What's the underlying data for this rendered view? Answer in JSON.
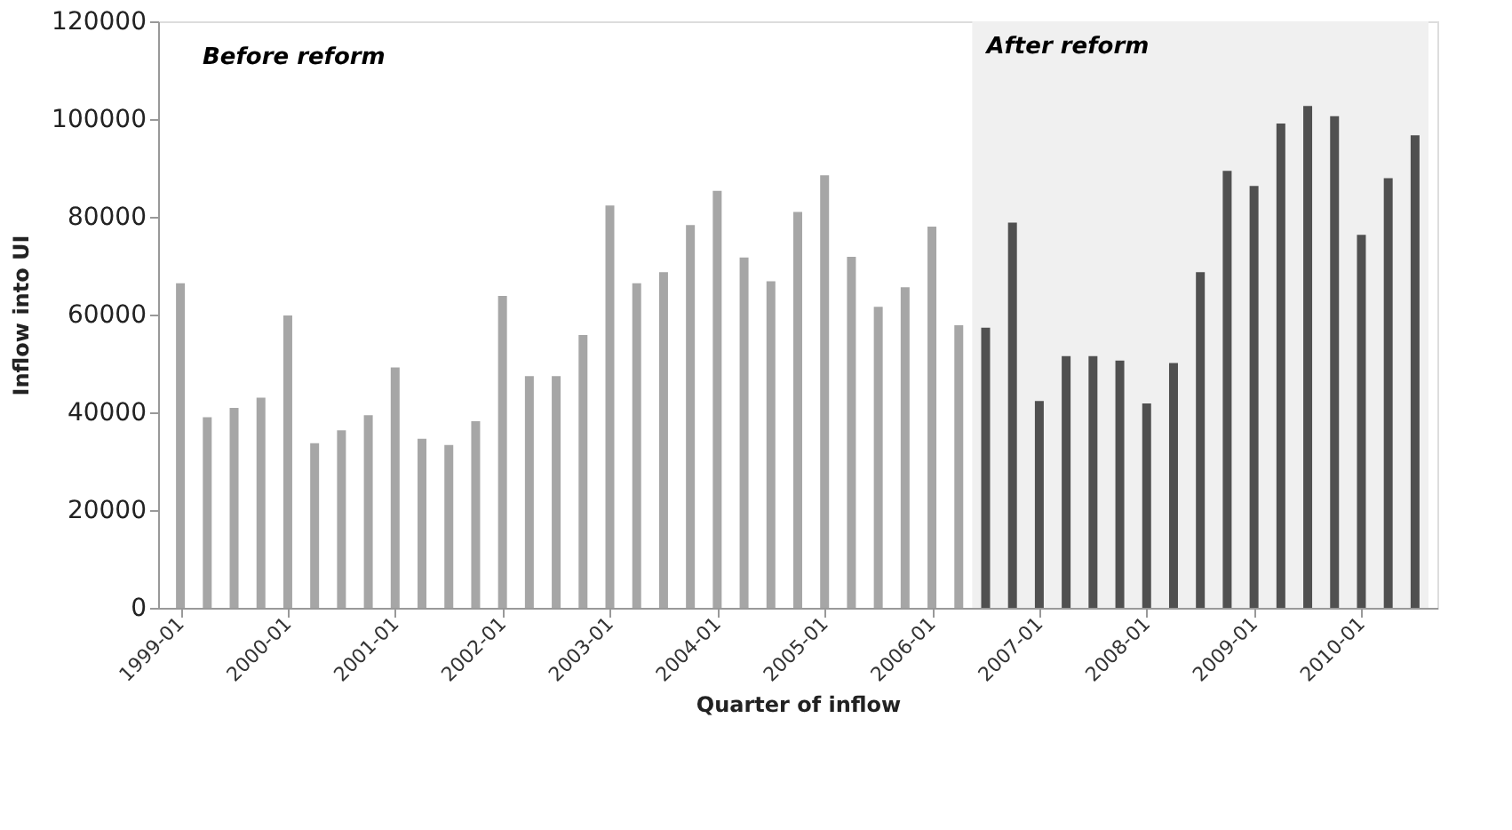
{
  "chart_data": {
    "type": "bar",
    "xlabel": "Quarter of inflow",
    "ylabel": "Inflow into UI",
    "categories": [
      "1999-01",
      null,
      null,
      null,
      "2000-01",
      null,
      null,
      null,
      "2001-01",
      null,
      null,
      null,
      "2002-01",
      null,
      null,
      null,
      "2003-01",
      null,
      null,
      null,
      "2004-01",
      null,
      null,
      null,
      "2005-01",
      null,
      null,
      null,
      "2006-01",
      null,
      null,
      null,
      "2007-01",
      null,
      null,
      null,
      "2008-01",
      null,
      null,
      null,
      "2009-01",
      null,
      null,
      null,
      "2010-01",
      null,
      null
    ],
    "values": [
      66400,
      39000,
      40900,
      43000,
      59800,
      33700,
      36300,
      39400,
      49200,
      34600,
      33300,
      38200,
      63800,
      47400,
      47400,
      55800,
      82300,
      66400,
      68700,
      78300,
      85300,
      71700,
      66800,
      81000,
      88500,
      71800,
      61600,
      65600,
      78000,
      57800,
      57300,
      78800,
      42300,
      51500,
      51500,
      50600,
      41800,
      50100,
      68700,
      89400,
      86300,
      99100,
      102700,
      100600,
      76300,
      87900,
      96700
    ],
    "colors": [
      "#a6a6a6",
      "#a6a6a6",
      "#a6a6a6",
      "#a6a6a6",
      "#a6a6a6",
      "#a6a6a6",
      "#a6a6a6",
      "#a6a6a6",
      "#a6a6a6",
      "#a6a6a6",
      "#a6a6a6",
      "#a6a6a6",
      "#a6a6a6",
      "#a6a6a6",
      "#a6a6a6",
      "#a6a6a6",
      "#a6a6a6",
      "#a6a6a6",
      "#a6a6a6",
      "#a6a6a6",
      "#a6a6a6",
      "#a6a6a6",
      "#a6a6a6",
      "#a6a6a6",
      "#a6a6a6",
      "#a6a6a6",
      "#a6a6a6",
      "#a6a6a6",
      "#a6a6a6",
      "#a6a6a6",
      "#505050",
      "#505050",
      "#505050",
      "#505050",
      "#505050",
      "#505050",
      "#505050",
      "#505050",
      "#505050",
      "#505050",
      "#505050",
      "#505050",
      "#505050",
      "#505050",
      "#505050",
      "#505050",
      "#505050"
    ],
    "ylim": [
      0,
      120000
    ],
    "yticks": [
      0,
      20000,
      40000,
      60000,
      80000,
      100000,
      120000
    ],
    "grid": false,
    "legend": false,
    "annotations": [
      "Before reform",
      "After reform"
    ]
  }
}
